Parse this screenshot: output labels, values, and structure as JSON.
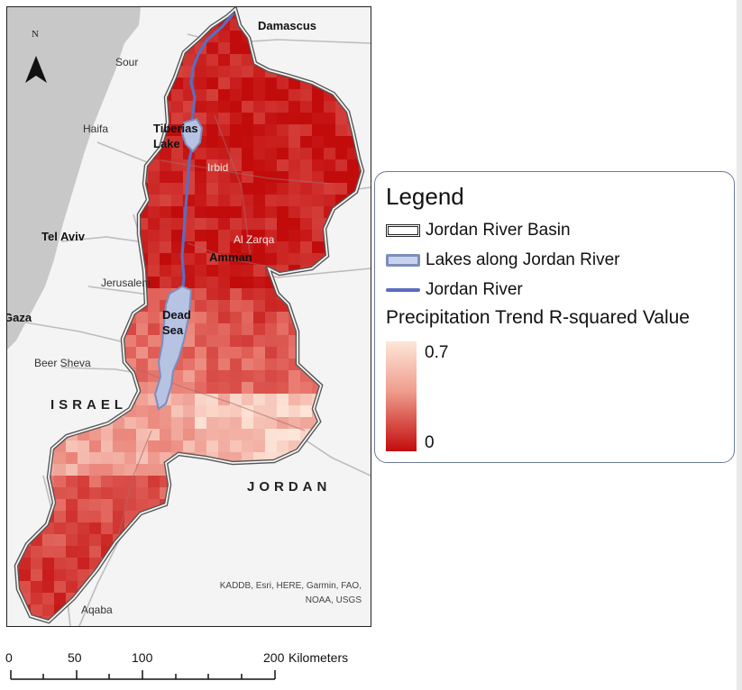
{
  "map": {
    "north_label": "N",
    "places": {
      "damascus": "Damascus",
      "sour": "Sour",
      "haifa": "Haifa",
      "tiberias_lake": "Tiberias Lake",
      "irbid": "Irbid",
      "tel_aviv": "Tel Aviv",
      "al_zarqa": "Al Zarqa",
      "amman": "Amman",
      "jerusalem": "Jerusalem",
      "gaza": "Gaza",
      "dead_sea": "Dead Sea",
      "beer_sheva": "Beer Sheva",
      "israel": "ISRAEL",
      "jordan": "JORDAN",
      "aqaba": "Aqaba"
    },
    "attribution": "KADDB, Esri, HERE, Garmin, FAO, NOAA, USGS",
    "colors": {
      "sea": "#c8c8c8",
      "land": "#f4f4f4",
      "river": "#5b6dbf",
      "lake_fill": "#b7c3e3",
      "lake_stroke": "#7d8dbc",
      "ramp_high": "#fde6d8",
      "ramp_low": "#c20c0c"
    }
  },
  "legend": {
    "title": "Legend",
    "items": [
      {
        "label": "Jordan River Basin",
        "symbol": "double-outline"
      },
      {
        "label": "Lakes along Jordan River",
        "symbol": "blue-patch"
      },
      {
        "label": "Jordan River",
        "symbol": "blue-line"
      }
    ],
    "ramp_title": "Precipitation Trend R-squared Value",
    "ramp_max": "0.7",
    "ramp_min": "0"
  },
  "scalebar": {
    "ticks": [
      "0",
      "50",
      "100",
      "200"
    ],
    "unit": "Kilometers"
  }
}
